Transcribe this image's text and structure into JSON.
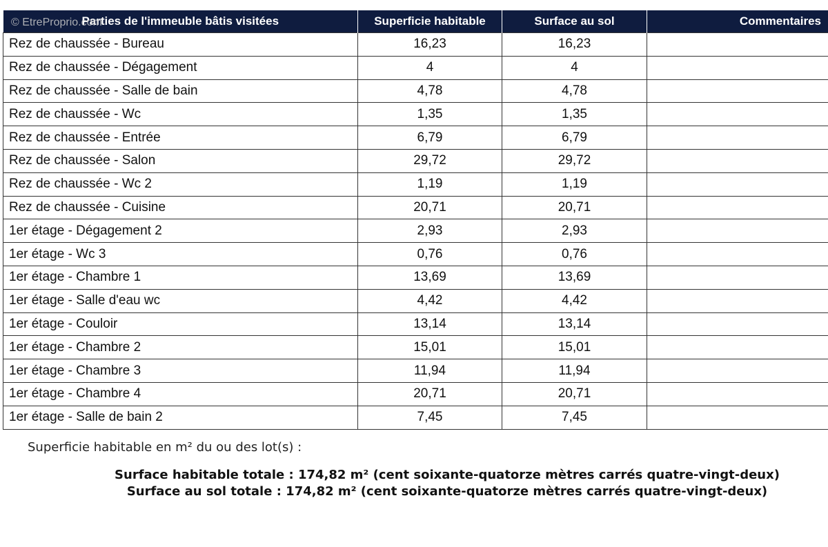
{
  "watermark": "© EtreProprio.com",
  "table": {
    "headers": [
      "Parties de l'immeuble bâtis visitées",
      "Superficie habitable",
      "Surface au sol",
      "Commentaires"
    ],
    "rows": [
      [
        "Rez de chaussée - Bureau",
        "16,23",
        "16,23"
      ],
      [
        "Rez de chaussée - Dégagement",
        "4",
        "4"
      ],
      [
        "Rez de chaussée - Salle de bain",
        "4,78",
        "4,78"
      ],
      [
        "Rez de chaussée - Wc",
        "1,35",
        "1,35"
      ],
      [
        "Rez de chaussée - Entrée",
        "6,79",
        "6,79"
      ],
      [
        "Rez de chaussée - Salon",
        "29,72",
        "29,72"
      ],
      [
        "Rez de chaussée - Wc 2",
        "1,19",
        "1,19"
      ],
      [
        "Rez de chaussée - Cuisine",
        "20,71",
        "20,71"
      ],
      [
        "1er étage - Dégagement 2",
        "2,93",
        "2,93"
      ],
      [
        "1er étage - Wc 3",
        "0,76",
        "0,76"
      ],
      [
        "1er étage - Chambre 1",
        "13,69",
        "13,69"
      ],
      [
        "1er étage - Salle d'eau wc",
        "4,42",
        "4,42"
      ],
      [
        "1er étage - Couloir",
        "13,14",
        "13,14"
      ],
      [
        "1er étage - Chambre 2",
        "15,01",
        "15,01"
      ],
      [
        "1er étage - Chambre 3",
        "11,94",
        "11,94"
      ],
      [
        "1er étage - Chambre 4",
        "20,71",
        "20,71"
      ],
      [
        "1er étage - Salle de bain 2",
        "7,45",
        "7,45"
      ]
    ]
  },
  "summary": {
    "intro": "Superficie habitable en m² du ou des lot(s) :",
    "lines": [
      "Surface habitable totale : 174,82 m² (cent soixante-quatorze mètres carrés quatre-vingt-deux)",
      "Surface au sol totale : 174,82 m² (cent soixante-quatorze mètres carrés quatre-vingt-deux)"
    ]
  }
}
